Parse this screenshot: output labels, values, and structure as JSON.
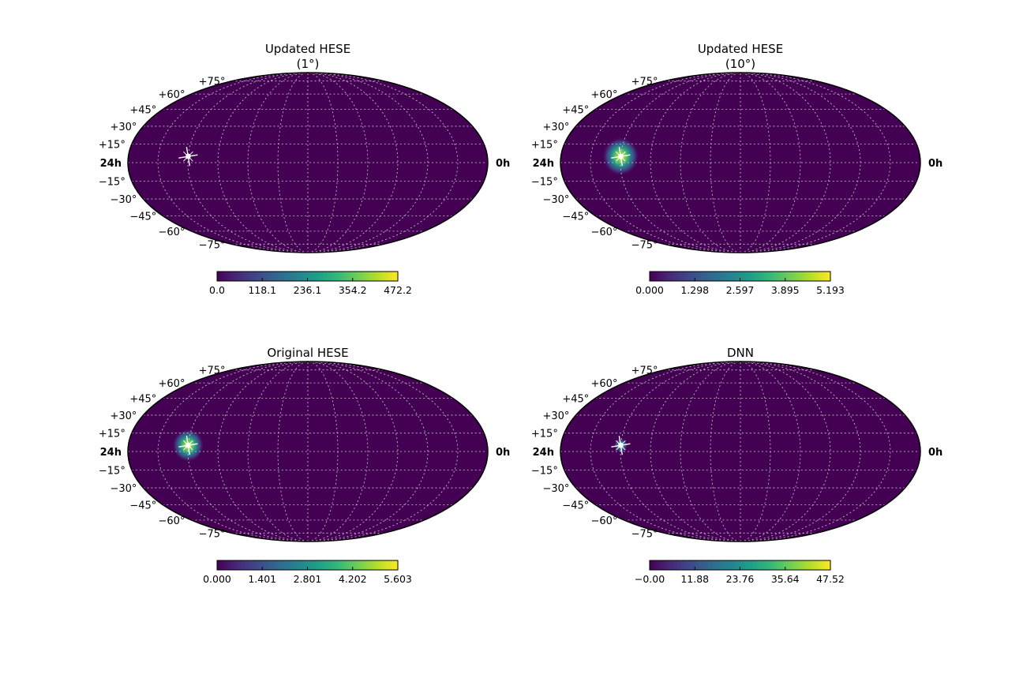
{
  "colormap": [
    "#440154",
    "#482878",
    "#3e4989",
    "#31688e",
    "#26828e",
    "#1f9e89",
    "#35b779",
    "#6ece58",
    "#b5de2b",
    "#fde725"
  ],
  "grid_color": "#cccccc",
  "background_color": "#440154",
  "chart_data": [
    {
      "type": "heatmap",
      "projection": "mollweide",
      "title_lines": [
        "Updated HESE",
        "(1°)"
      ],
      "dec_labels": [
        "+75°",
        "+60°",
        "+45°",
        "+30°",
        "+15°",
        "−15°",
        "−30°",
        "−45°",
        "−60°",
        "−75°"
      ],
      "ra_left_label": "24h",
      "ra_right_label": "0h",
      "colorbar_ticks": [
        "0.0",
        "118.1",
        "236.1",
        "354.2",
        "472.2"
      ],
      "hotspot": {
        "ra_deg": 300,
        "dec_deg": 5,
        "spread_deg": 1,
        "peak_fraction": 0.0
      },
      "marker": {
        "ra_deg": 300,
        "dec_deg": 5
      }
    },
    {
      "type": "heatmap",
      "projection": "mollweide",
      "title_lines": [
        "Updated HESE",
        "(10°)"
      ],
      "dec_labels": [
        "+75°",
        "+60°",
        "+45°",
        "+30°",
        "+15°",
        "−15°",
        "−30°",
        "−45°",
        "−60°",
        "−75°"
      ],
      "ra_left_label": "24h",
      "ra_right_label": "0h",
      "colorbar_ticks": [
        "0.000",
        "1.298",
        "2.597",
        "3.895",
        "5.193"
      ],
      "hotspot": {
        "ra_deg": 300,
        "dec_deg": 5,
        "spread_deg": 6,
        "peak_fraction": 1.0
      },
      "marker": {
        "ra_deg": 300,
        "dec_deg": 5
      }
    },
    {
      "type": "heatmap",
      "projection": "mollweide",
      "title_lines": [
        "Original HESE"
      ],
      "dec_labels": [
        "+75°",
        "+60°",
        "+45°",
        "+30°",
        "+15°",
        "−15°",
        "−30°",
        "−45°",
        "−60°",
        "−75°"
      ],
      "ra_left_label": "24h",
      "ra_right_label": "0h",
      "colorbar_ticks": [
        "0.000",
        "1.401",
        "2.801",
        "4.202",
        "5.603"
      ],
      "hotspot": {
        "ra_deg": 300,
        "dec_deg": 5,
        "spread_deg": 5,
        "peak_fraction": 1.0
      },
      "marker": {
        "ra_deg": 300,
        "dec_deg": 5
      }
    },
    {
      "type": "heatmap",
      "projection": "mollweide",
      "title_lines": [
        "DNN"
      ],
      "dec_labels": [
        "+75°",
        "+60°",
        "+45°",
        "+30°",
        "+15°",
        "−15°",
        "−30°",
        "−45°",
        "−60°",
        "−75°"
      ],
      "ra_left_label": "24h",
      "ra_right_label": "0h",
      "colorbar_ticks": [
        "−0.00",
        "11.88",
        "23.76",
        "35.64",
        "47.52"
      ],
      "hotspot": {
        "ra_deg": 300,
        "dec_deg": 5,
        "spread_deg": 1.5,
        "peak_fraction": 0.7
      },
      "marker": {
        "ra_deg": 300,
        "dec_deg": 5
      }
    }
  ]
}
